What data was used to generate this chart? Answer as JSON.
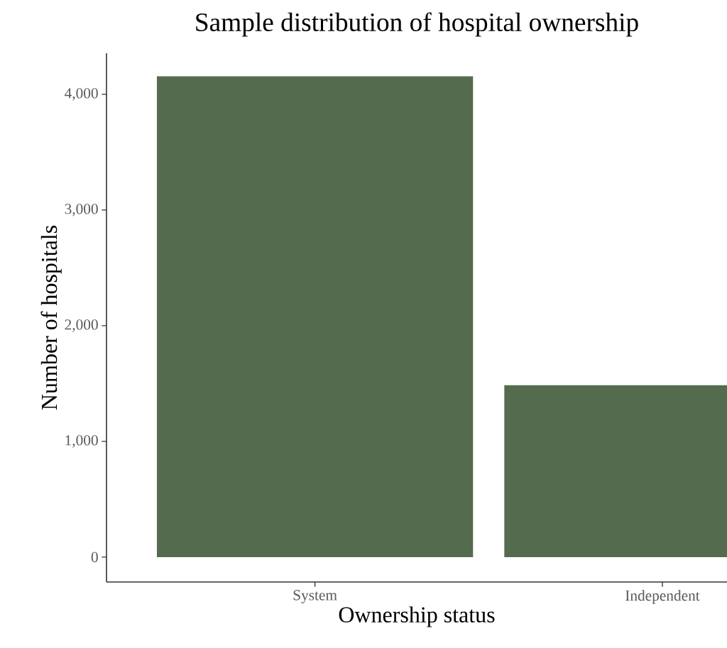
{
  "chart_data": {
    "type": "bar",
    "title": "Sample distribution of hospital ownership",
    "xlabel": "Ownership status",
    "ylabel": "Number of hospitals",
    "categories": [
      "System",
      "Independent"
    ],
    "values": [
      4155,
      1485
    ],
    "color": "#546b4e",
    "ylim": [
      -215,
      4355
    ],
    "yticks": [
      0,
      {
        "value": 1000,
        "label": "1,000"
      },
      {
        "value": 2000,
        "label": "2,000"
      },
      {
        "value": 3000,
        "label": "3,000"
      },
      {
        "value": 4000,
        "label": "4,000"
      }
    ],
    "grid": false
  }
}
